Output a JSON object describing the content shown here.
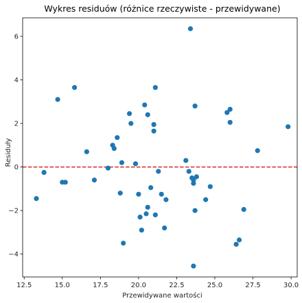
{
  "chart_data": {
    "type": "scatter",
    "title": "Wykres residuów (różnice rzeczywiste - przewidywane)",
    "xlabel": "Przewidywane wartości",
    "ylabel": "Residuły",
    "xlim": [
      12.4,
      30.4
    ],
    "ylim": [
      -5.05,
      6.85
    ],
    "xticks": [
      "12.5",
      "15.0",
      "17.5",
      "20.0",
      "22.5",
      "25.0",
      "27.5",
      "30.0"
    ],
    "xtick_values": [
      12.5,
      15.0,
      17.5,
      20.0,
      22.5,
      25.0,
      27.5,
      30.0
    ],
    "yticks": [
      "−4",
      "−2",
      "0",
      "2",
      "4",
      "6"
    ],
    "ytick_values": [
      -4,
      -2,
      0,
      2,
      4,
      6
    ],
    "grid": false,
    "reference_line": {
      "y": 0,
      "style": "dashed",
      "color": "#d62728"
    },
    "marker_color": "#1f77b4",
    "points": [
      {
        "x": 13.3,
        "y": -1.45
      },
      {
        "x": 13.8,
        "y": -0.25
      },
      {
        "x": 14.7,
        "y": 3.1
      },
      {
        "x": 15.0,
        "y": -0.7
      },
      {
        "x": 15.2,
        "y": -0.7
      },
      {
        "x": 15.8,
        "y": 3.65
      },
      {
        "x": 16.6,
        "y": 0.7
      },
      {
        "x": 17.1,
        "y": -0.6
      },
      {
        "x": 18.0,
        "y": -0.05
      },
      {
        "x": 18.3,
        "y": 1.0
      },
      {
        "x": 18.4,
        "y": 0.85
      },
      {
        "x": 18.6,
        "y": 1.35
      },
      {
        "x": 18.8,
        "y": -1.2
      },
      {
        "x": 18.9,
        "y": 0.2
      },
      {
        "x": 19.0,
        "y": -3.5
      },
      {
        "x": 19.4,
        "y": 2.45
      },
      {
        "x": 19.5,
        "y": 2.0
      },
      {
        "x": 19.8,
        "y": 0.15
      },
      {
        "x": 20.0,
        "y": -1.25
      },
      {
        "x": 20.1,
        "y": -2.3
      },
      {
        "x": 20.2,
        "y": -2.9
      },
      {
        "x": 20.4,
        "y": 2.85
      },
      {
        "x": 20.5,
        "y": -2.15
      },
      {
        "x": 20.6,
        "y": -1.85
      },
      {
        "x": 20.6,
        "y": 2.4
      },
      {
        "x": 20.8,
        "y": -0.95
      },
      {
        "x": 21.0,
        "y": 1.65
      },
      {
        "x": 21.0,
        "y": 1.95
      },
      {
        "x": 21.1,
        "y": 3.65
      },
      {
        "x": 21.1,
        "y": -2.2
      },
      {
        "x": 21.3,
        "y": -0.2
      },
      {
        "x": 21.5,
        "y": -1.25
      },
      {
        "x": 21.7,
        "y": -2.8
      },
      {
        "x": 21.8,
        "y": -1.5
      },
      {
        "x": 23.1,
        "y": 0.3
      },
      {
        "x": 23.3,
        "y": -0.2
      },
      {
        "x": 23.4,
        "y": 6.35
      },
      {
        "x": 23.5,
        "y": -0.5
      },
      {
        "x": 23.6,
        "y": -0.6
      },
      {
        "x": 23.6,
        "y": -0.75
      },
      {
        "x": 23.6,
        "y": -4.55
      },
      {
        "x": 23.7,
        "y": 2.8
      },
      {
        "x": 23.7,
        "y": -2.0
      },
      {
        "x": 23.8,
        "y": -0.45
      },
      {
        "x": 24.4,
        "y": -1.5
      },
      {
        "x": 24.7,
        "y": -0.9
      },
      {
        "x": 25.8,
        "y": 2.5
      },
      {
        "x": 26.0,
        "y": 2.65
      },
      {
        "x": 26.0,
        "y": 2.05
      },
      {
        "x": 26.4,
        "y": -3.55
      },
      {
        "x": 26.6,
        "y": -3.35
      },
      {
        "x": 26.9,
        "y": -1.95
      },
      {
        "x": 27.8,
        "y": 0.75
      },
      {
        "x": 29.8,
        "y": 1.85
      }
    ]
  }
}
